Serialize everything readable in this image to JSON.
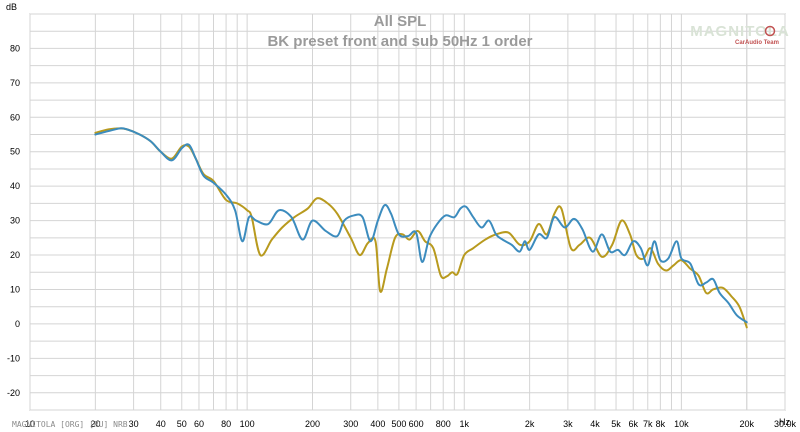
{
  "chart_data": {
    "type": "line",
    "title": "All SPL",
    "subtitle": "BK preset front and sub 50Hz 1 order",
    "ylabel": "dB",
    "xlabel": "Hz",
    "x_scale": "log",
    "xlim": [
      10,
      30000
    ],
    "ylim": [
      -25,
      90
    ],
    "grid": true,
    "y_ticks": [
      80,
      70,
      60,
      50,
      40,
      30,
      20,
      10,
      0,
      -10,
      -20
    ],
    "x_ticks": [
      {
        "v": 10,
        "label": "10"
      },
      {
        "v": 20,
        "label": "20"
      },
      {
        "v": 30,
        "label": "30"
      },
      {
        "v": 40,
        "label": "40"
      },
      {
        "v": 50,
        "label": "50"
      },
      {
        "v": 60,
        "label": "60"
      },
      {
        "v": 80,
        "label": "80"
      },
      {
        "v": 100,
        "label": "100"
      },
      {
        "v": 200,
        "label": "200"
      },
      {
        "v": 300,
        "label": "300"
      },
      {
        "v": 400,
        "label": "400"
      },
      {
        "v": 500,
        "label": "500"
      },
      {
        "v": 600,
        "label": "600"
      },
      {
        "v": 800,
        "label": "800"
      },
      {
        "v": 1000,
        "label": "1k"
      },
      {
        "v": 2000,
        "label": "2k"
      },
      {
        "v": 3000,
        "label": "3k"
      },
      {
        "v": 4000,
        "label": "4k"
      },
      {
        "v": 5000,
        "label": "5k"
      },
      {
        "v": 6000,
        "label": "6k"
      },
      {
        "v": 7000,
        "label": "7k"
      },
      {
        "v": 8000,
        "label": "8k"
      },
      {
        "v": 10000,
        "label": "10k"
      },
      {
        "v": 20000,
        "label": "20k"
      },
      {
        "v": 30000,
        "label": "30.0k"
      }
    ],
    "series": [
      {
        "color": "#b89a1e",
        "points": [
          [
            20,
            55.5
          ],
          [
            23,
            56.5
          ],
          [
            26,
            56.8
          ],
          [
            28,
            56.5
          ],
          [
            32,
            55
          ],
          [
            36,
            53
          ],
          [
            40,
            50
          ],
          [
            45,
            48
          ],
          [
            50,
            51.5
          ],
          [
            54,
            51.5
          ],
          [
            58,
            48
          ],
          [
            63,
            43.5
          ],
          [
            70,
            41.5
          ],
          [
            80,
            36
          ],
          [
            90,
            35
          ],
          [
            100,
            33
          ],
          [
            105,
            31
          ],
          [
            115,
            20
          ],
          [
            130,
            24.5
          ],
          [
            145,
            28
          ],
          [
            165,
            31
          ],
          [
            190,
            33.5
          ],
          [
            210,
            36.5
          ],
          [
            235,
            35
          ],
          [
            260,
            32
          ],
          [
            300,
            25
          ],
          [
            330,
            20
          ],
          [
            360,
            23.5
          ],
          [
            390,
            24
          ],
          [
            410,
            9.5
          ],
          [
            440,
            16
          ],
          [
            480,
            25
          ],
          [
            520,
            26
          ],
          [
            560,
            24.5
          ],
          [
            610,
            27
          ],
          [
            660,
            24
          ],
          [
            720,
            22
          ],
          [
            780,
            14
          ],
          [
            830,
            13.8
          ],
          [
            880,
            15
          ],
          [
            930,
            14.5
          ],
          [
            1000,
            20
          ],
          [
            1100,
            22
          ],
          [
            1250,
            24.5
          ],
          [
            1400,
            26
          ],
          [
            1600,
            26.5
          ],
          [
            1800,
            23
          ],
          [
            2000,
            24
          ],
          [
            2200,
            29
          ],
          [
            2400,
            26
          ],
          [
            2600,
            32
          ],
          [
            2800,
            33.5
          ],
          [
            3100,
            22
          ],
          [
            3400,
            23
          ],
          [
            3800,
            25
          ],
          [
            4300,
            19.5
          ],
          [
            4800,
            23
          ],
          [
            5300,
            30
          ],
          [
            5800,
            26
          ],
          [
            6200,
            20
          ],
          [
            6700,
            19
          ],
          [
            7200,
            22
          ],
          [
            7800,
            17.5
          ],
          [
            8500,
            15.5
          ],
          [
            9200,
            17
          ],
          [
            10000,
            18.5
          ],
          [
            11000,
            16
          ],
          [
            12000,
            14
          ],
          [
            13000,
            9
          ],
          [
            14000,
            10
          ],
          [
            15500,
            10.5
          ],
          [
            17000,
            8
          ],
          [
            18500,
            5
          ],
          [
            20000,
            -1
          ]
        ]
      },
      {
        "color": "#3c8cbe",
        "points": [
          [
            20,
            55
          ],
          [
            23,
            56
          ],
          [
            26,
            56.8
          ],
          [
            28,
            56.5
          ],
          [
            32,
            55
          ],
          [
            36,
            53
          ],
          [
            40,
            50
          ],
          [
            45,
            47.5
          ],
          [
            50,
            51
          ],
          [
            54,
            52
          ],
          [
            58,
            48
          ],
          [
            63,
            43
          ],
          [
            70,
            41
          ],
          [
            80,
            37.5
          ],
          [
            88,
            33
          ],
          [
            95,
            24
          ],
          [
            102,
            31
          ],
          [
            110,
            30
          ],
          [
            125,
            29
          ],
          [
            140,
            33
          ],
          [
            160,
            31
          ],
          [
            180,
            24.5
          ],
          [
            200,
            30
          ],
          [
            230,
            27
          ],
          [
            260,
            25.5
          ],
          [
            280,
            30
          ],
          [
            310,
            31.5
          ],
          [
            340,
            31
          ],
          [
            370,
            24
          ],
          [
            400,
            30
          ],
          [
            430,
            34.5
          ],
          [
            460,
            32
          ],
          [
            500,
            26
          ],
          [
            550,
            25.5
          ],
          [
            600,
            26.5
          ],
          [
            640,
            18
          ],
          [
            690,
            25
          ],
          [
            750,
            29
          ],
          [
            820,
            31.5
          ],
          [
            900,
            31
          ],
          [
            960,
            33.5
          ],
          [
            1020,
            34
          ],
          [
            1100,
            31
          ],
          [
            1200,
            28
          ],
          [
            1300,
            30
          ],
          [
            1400,
            26
          ],
          [
            1500,
            24.5
          ],
          [
            1650,
            23
          ],
          [
            1800,
            21
          ],
          [
            1900,
            24
          ],
          [
            2000,
            21.5
          ],
          [
            2200,
            26
          ],
          [
            2400,
            25
          ],
          [
            2600,
            31
          ],
          [
            2900,
            28
          ],
          [
            3200,
            30.5
          ],
          [
            3500,
            27.5
          ],
          [
            3900,
            21
          ],
          [
            4300,
            26
          ],
          [
            4700,
            21
          ],
          [
            5100,
            21.5
          ],
          [
            5500,
            20
          ],
          [
            6000,
            24
          ],
          [
            6500,
            22
          ],
          [
            7000,
            17
          ],
          [
            7500,
            24
          ],
          [
            8000,
            18.5
          ],
          [
            8700,
            19
          ],
          [
            9500,
            24
          ],
          [
            10000,
            19
          ],
          [
            11000,
            17.5
          ],
          [
            12000,
            11.5
          ],
          [
            13000,
            12
          ],
          [
            14000,
            13
          ],
          [
            15000,
            9
          ],
          [
            16500,
            6
          ],
          [
            18000,
            2.5
          ],
          [
            20000,
            0.5
          ]
        ]
      }
    ]
  },
  "watermark": {
    "brand": "MAGNITOLA",
    "team": "CarAudio Team"
  },
  "footer": "MAGNITOLA [ORG] [RU] NRB"
}
